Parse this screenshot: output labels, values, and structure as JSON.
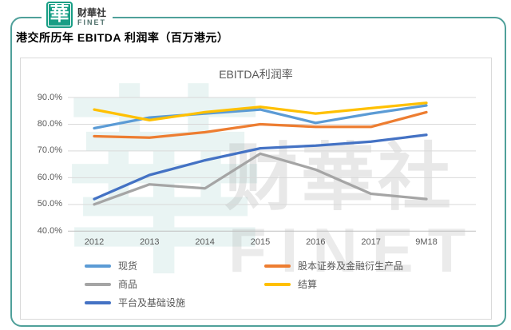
{
  "header": {
    "logo_char": "華",
    "brand_name": "财華社",
    "brand_sub": "FINET",
    "title": "港交所历年 EBITDA 利润率（百万港元）"
  },
  "watermark": {
    "char": "華",
    "text_cn": "财華社",
    "text_en": "FINET"
  },
  "chart_data": {
    "type": "line",
    "title": "EBITDA利润率",
    "categories": [
      "2012",
      "2013",
      "2014",
      "2015",
      "2016",
      "2017",
      "9M18"
    ],
    "series": [
      {
        "name": "现货",
        "color": "#5B9BD5",
        "values": [
          78.5,
          82.5,
          84.0,
          85.5,
          80.5,
          84.0,
          87.0
        ]
      },
      {
        "name": "股本证券及金融衍生产品",
        "color": "#ED7D31",
        "values": [
          75.5,
          75.0,
          77.0,
          80.0,
          79.0,
          79.0,
          84.5
        ]
      },
      {
        "name": "商品",
        "color": "#A5A5A5",
        "values": [
          50.0,
          57.5,
          56.0,
          69.0,
          63.0,
          54.0,
          52.0
        ]
      },
      {
        "name": "结算",
        "color": "#FFC000",
        "values": [
          85.5,
          81.5,
          84.5,
          86.5,
          84.0,
          86.0,
          88.0
        ]
      },
      {
        "name": "平台及基础设施",
        "color": "#4472C4",
        "values": [
          52.0,
          61.0,
          66.5,
          71.0,
          72.0,
          73.5,
          76.0
        ]
      }
    ],
    "ylim": [
      40,
      90
    ],
    "ytick_labels": [
      "90.0%",
      "80.0%",
      "70.0%",
      "60.0%",
      "50.0%",
      "40.0%"
    ],
    "xlabel": "",
    "ylabel": "",
    "grid": true,
    "legend_position": "bottom"
  },
  "colors": {
    "frame_teal": "#4FA09A",
    "logo_green": "#189E85",
    "axis_text": "#595959",
    "gridline": "#D9D9D9",
    "axis_line": "#BFBFBF"
  }
}
